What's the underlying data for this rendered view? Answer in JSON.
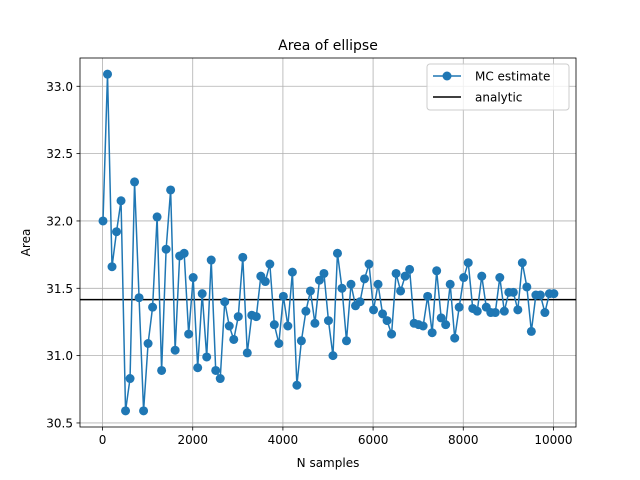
{
  "chart_data": {
    "type": "line",
    "title": "Area of ellipse",
    "xlabel": "N samples",
    "ylabel": "Area",
    "xlim": [
      -500,
      10500
    ],
    "ylim": [
      30.47,
      33.21
    ],
    "xticks": [
      0,
      2000,
      4000,
      6000,
      8000,
      10000
    ],
    "yticks": [
      30.5,
      31.0,
      31.5,
      32.0,
      32.5,
      33.0
    ],
    "xtick_labels": [
      "0",
      "2000",
      "4000",
      "6000",
      "8000",
      "10000"
    ],
    "ytick_labels": [
      "30.5",
      "31.0",
      "31.5",
      "32.0",
      "32.5",
      "33.0"
    ],
    "grid": true,
    "legend_position": "upper right",
    "colors": {
      "series": "#1f77b4",
      "analytic": "#000000",
      "grid": "#b0b0b0"
    },
    "series": [
      {
        "name": "MC estimate",
        "x": [
          10,
          110,
          210,
          310,
          410,
          510,
          610,
          710,
          810,
          910,
          1010,
          1110,
          1210,
          1310,
          1410,
          1510,
          1610,
          1710,
          1810,
          1910,
          2010,
          2110,
          2210,
          2310,
          2410,
          2510,
          2610,
          2710,
          2810,
          2910,
          3010,
          3110,
          3210,
          3310,
          3410,
          3510,
          3610,
          3710,
          3810,
          3910,
          4010,
          4110,
          4210,
          4310,
          4410,
          4510,
          4610,
          4710,
          4810,
          4910,
          5010,
          5110,
          5210,
          5310,
          5410,
          5510,
          5610,
          5710,
          5810,
          5910,
          6010,
          6110,
          6210,
          6310,
          6410,
          6510,
          6610,
          6710,
          6810,
          6910,
          7010,
          7110,
          7210,
          7310,
          7410,
          7510,
          7610,
          7710,
          7810,
          7910,
          8010,
          8110,
          8210,
          8310,
          8410,
          8510,
          8610,
          8710,
          8810,
          8910,
          9010,
          9110,
          9210,
          9310,
          9410,
          9510,
          9610,
          9710,
          9810,
          9910,
          10010
        ],
        "y": [
          32.0,
          33.09,
          31.66,
          31.92,
          32.15,
          30.59,
          30.83,
          32.29,
          31.43,
          30.59,
          31.09,
          31.36,
          32.03,
          30.89,
          31.79,
          32.23,
          31.04,
          31.74,
          31.76,
          31.16,
          31.58,
          30.91,
          31.46,
          30.99,
          31.71,
          30.89,
          30.83,
          31.4,
          31.22,
          31.12,
          31.29,
          31.73,
          31.02,
          31.3,
          31.29,
          31.59,
          31.55,
          31.68,
          31.23,
          31.09,
          31.44,
          31.22,
          31.62,
          30.78,
          31.11,
          31.33,
          31.48,
          31.24,
          31.56,
          31.61,
          31.26,
          31.0,
          31.76,
          31.5,
          31.11,
          31.53,
          31.37,
          31.4,
          31.57,
          31.68,
          31.34,
          31.53,
          31.31,
          31.26,
          31.16,
          31.61,
          31.48,
          31.59,
          31.64,
          31.24,
          31.23,
          31.22,
          31.44,
          31.17,
          31.63,
          31.28,
          31.23,
          31.53,
          31.13,
          31.36,
          31.58,
          31.69,
          31.35,
          31.33,
          31.59,
          31.36,
          31.32,
          31.32,
          31.58,
          31.33,
          31.47,
          31.47,
          31.34,
          31.69,
          31.51,
          31.18,
          31.45,
          31.45,
          31.32,
          31.46,
          31.46
        ]
      },
      {
        "name": "analytic",
        "value": 31.416
      }
    ]
  }
}
